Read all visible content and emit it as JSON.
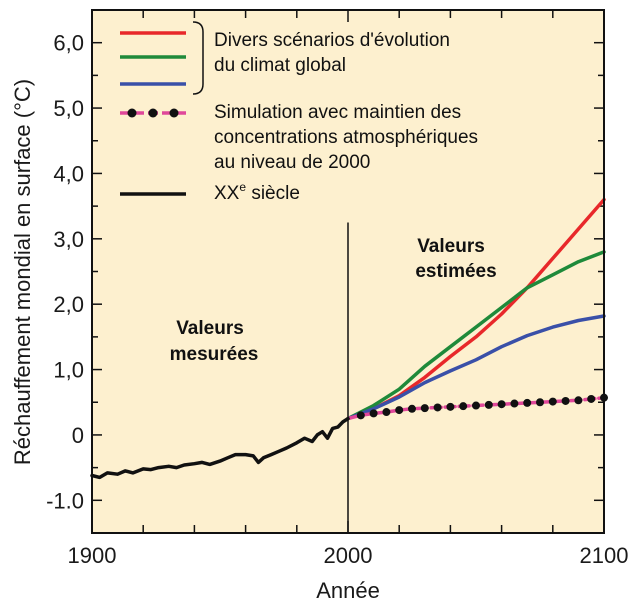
{
  "chart_data": {
    "type": "line",
    "title": "",
    "xlabel": "Année",
    "ylabel": "Réchauffement mondial en surface (°C)",
    "xlim": [
      1900,
      2100
    ],
    "ylim": [
      -1.5,
      6.5
    ],
    "x_ticks": [
      1900,
      2000,
      2100
    ],
    "x_tick_labels": [
      "1900",
      "2000",
      "2100"
    ],
    "y_ticks": [
      -1.0,
      0,
      1.0,
      2.0,
      3.0,
      4.0,
      5.0,
      6.0
    ],
    "y_tick_labels": [
      "-1.0",
      "0",
      "1,0",
      "2,0",
      "3,0",
      "4,0",
      "5,0",
      "6,0"
    ],
    "background_color": "#fdf0cf",
    "legend_position": "top-left",
    "legend": {
      "scenarios_label_line1": "Divers scénarios d'évolution",
      "scenarios_label_line2": "du climat global",
      "constant_label_line1": "Simulation avec maintien des",
      "constant_label_line2": "concentrations atmosphériques",
      "constant_label_line3": "au niveau de 2000",
      "century_label": "XX",
      "century_superscript": "e",
      "century_suffix": " siècle"
    },
    "annotations": {
      "measured_line1": "Valeurs",
      "measured_line2": "mesurées",
      "estimated_line1": "Valeurs",
      "estimated_line2": "estimées",
      "divider_x": 2000
    },
    "series": [
      {
        "color": "#e8282a",
        "x": [
          2000,
          2010,
          2020,
          2030,
          2040,
          2050,
          2060,
          2070,
          2080,
          2090,
          2100
        ],
        "y": [
          0.25,
          0.4,
          0.6,
          0.88,
          1.2,
          1.5,
          1.85,
          2.25,
          2.7,
          3.15,
          3.6
        ]
      },
      {
        "color": "#1f8a3a",
        "x": [
          2000,
          2010,
          2020,
          2030,
          2040,
          2050,
          2060,
          2070,
          2080,
          2090,
          2100
        ],
        "y": [
          0.25,
          0.45,
          0.7,
          1.05,
          1.35,
          1.65,
          1.95,
          2.25,
          2.45,
          2.65,
          2.8
        ]
      },
      {
        "color": "#3a50a8",
        "x": [
          2000,
          2010,
          2020,
          2030,
          2040,
          2050,
          2060,
          2070,
          2080,
          2090,
          2100
        ],
        "y": [
          0.25,
          0.4,
          0.58,
          0.8,
          0.98,
          1.15,
          1.35,
          1.52,
          1.65,
          1.75,
          1.82
        ]
      },
      {
        "color": "#e0479a",
        "marker_color": "#111111",
        "dashed_markers": true,
        "x": [
          2000,
          2005,
          2010,
          2015,
          2020,
          2025,
          2030,
          2035,
          2040,
          2045,
          2050,
          2055,
          2060,
          2065,
          2070,
          2075,
          2080,
          2085,
          2090,
          2095,
          2100
        ],
        "y": [
          0.25,
          0.3,
          0.33,
          0.35,
          0.38,
          0.4,
          0.41,
          0.42,
          0.43,
          0.44,
          0.45,
          0.46,
          0.47,
          0.48,
          0.49,
          0.5,
          0.51,
          0.52,
          0.53,
          0.55,
          0.57
        ]
      },
      {
        "color": "#111111",
        "x": [
          1900,
          1903,
          1906,
          1910,
          1913,
          1916,
          1920,
          1923,
          1926,
          1930,
          1933,
          1936,
          1940,
          1943,
          1946,
          1950,
          1953,
          1956,
          1960,
          1963,
          1965,
          1967,
          1970,
          1973,
          1976,
          1980,
          1983,
          1986,
          1988,
          1990,
          1992,
          1994,
          1996,
          1998,
          2000
        ],
        "y": [
          -0.62,
          -0.65,
          -0.58,
          -0.6,
          -0.55,
          -0.58,
          -0.52,
          -0.53,
          -0.5,
          -0.48,
          -0.5,
          -0.46,
          -0.44,
          -0.42,
          -0.45,
          -0.4,
          -0.35,
          -0.3,
          -0.3,
          -0.32,
          -0.42,
          -0.35,
          -0.3,
          -0.25,
          -0.2,
          -0.12,
          -0.05,
          -0.1,
          0.0,
          0.05,
          -0.05,
          0.1,
          0.12,
          0.2,
          0.25
        ]
      }
    ]
  }
}
